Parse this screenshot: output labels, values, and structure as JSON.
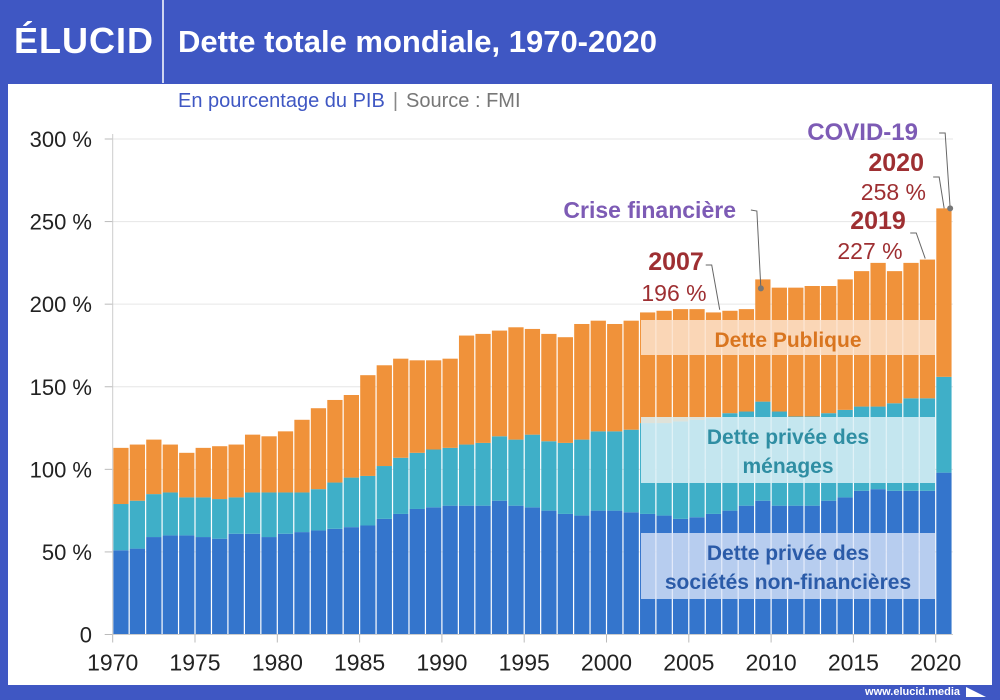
{
  "header": {
    "logo": "ÉLUCID",
    "title": "Dette totale mondiale, 1970-2020"
  },
  "subtitle": {
    "main": "En pourcentage du PIB",
    "separator": "|",
    "source": "Source : FMI"
  },
  "footer": {
    "url": "www.elucid.media"
  },
  "colors": {
    "header_bg": "#3F57C3",
    "corporate": "#3475CC",
    "households": "#3FAFC8",
    "public": "#F0923A",
    "annotation_event": "#7D5BB5",
    "annotation_year": "#9E2F32"
  },
  "chart_data": {
    "type": "bar",
    "stacked": true,
    "title": "Dette totale mondiale, 1970-2020",
    "subtitle": "En pourcentage du PIB | Source : FMI",
    "xlabel": "",
    "ylabel": "",
    "ylim": [
      0,
      300
    ],
    "yticks": [
      0,
      50,
      100,
      150,
      200,
      250,
      300
    ],
    "ytick_labels": [
      "0",
      "50 %",
      "100 %",
      "150 %",
      "200 %",
      "250 %",
      "300 %"
    ],
    "xticks": [
      1970,
      1975,
      1980,
      1985,
      1990,
      1995,
      2000,
      2005,
      2010,
      2015,
      2020
    ],
    "grid": true,
    "x": [
      1970,
      1971,
      1972,
      1973,
      1974,
      1975,
      1976,
      1977,
      1978,
      1979,
      1980,
      1981,
      1982,
      1983,
      1984,
      1985,
      1986,
      1987,
      1988,
      1989,
      1990,
      1991,
      1992,
      1993,
      1994,
      1995,
      1996,
      1997,
      1998,
      1999,
      2000,
      2001,
      2002,
      2003,
      2004,
      2005,
      2006,
      2007,
      2008,
      2009,
      2010,
      2011,
      2012,
      2013,
      2014,
      2015,
      2016,
      2017,
      2018,
      2019,
      2020
    ],
    "series": [
      {
        "name": "Dette privée des sociétés non-financières",
        "label_lines": [
          "Dette privée des",
          "sociétés non-financières"
        ],
        "values": [
          51,
          52,
          59,
          60,
          60,
          59,
          58,
          61,
          61,
          59,
          61,
          62,
          63,
          64,
          65,
          66,
          70,
          73,
          76,
          77,
          78,
          78,
          78,
          81,
          78,
          77,
          75,
          73,
          72,
          75,
          75,
          74,
          73,
          72,
          70,
          71,
          73,
          75,
          78,
          81,
          78,
          78,
          78,
          81,
          83,
          87,
          88,
          87,
          87,
          87,
          98
        ]
      },
      {
        "name": "Dette privée des ménages",
        "label_lines": [
          "Dette privée des",
          "ménages"
        ],
        "values": [
          28,
          29,
          26,
          26,
          23,
          24,
          24,
          22,
          25,
          27,
          25,
          24,
          25,
          28,
          30,
          30,
          32,
          34,
          34,
          35,
          35,
          37,
          38,
          39,
          40,
          44,
          42,
          43,
          46,
          48,
          48,
          50,
          55,
          56,
          59,
          59,
          58,
          59,
          57,
          60,
          57,
          54,
          54,
          53,
          53,
          51,
          50,
          53,
          56,
          56,
          58
        ]
      },
      {
        "name": "Dette Publique",
        "label_lines": [
          "Dette Publique"
        ],
        "values": [
          34,
          34,
          33,
          29,
          27,
          30,
          32,
          32,
          35,
          34,
          37,
          44,
          49,
          50,
          50,
          61,
          61,
          60,
          56,
          54,
          54,
          66,
          66,
          64,
          68,
          64,
          65,
          64,
          70,
          67,
          65,
          66,
          67,
          68,
          68,
          67,
          64,
          62,
          62,
          74,
          75,
          78,
          79,
          77,
          79,
          82,
          87,
          80,
          82,
          84,
          102
        ]
      }
    ],
    "annotations": [
      {
        "text": "2007",
        "kind": "year",
        "x": 2007
      },
      {
        "text": "196 %",
        "kind": "value",
        "x": 2007,
        "value": 196
      },
      {
        "text": "Crise financière",
        "kind": "event",
        "x": 2009
      },
      {
        "text": "2019",
        "kind": "year",
        "x": 2019
      },
      {
        "text": "227 %",
        "kind": "value",
        "x": 2019,
        "value": 227
      },
      {
        "text": "COVID-19",
        "kind": "event",
        "x": 2020
      },
      {
        "text": "2020",
        "kind": "year",
        "x": 2020
      },
      {
        "text": "258 %",
        "kind": "value",
        "x": 2020,
        "value": 258
      }
    ]
  }
}
